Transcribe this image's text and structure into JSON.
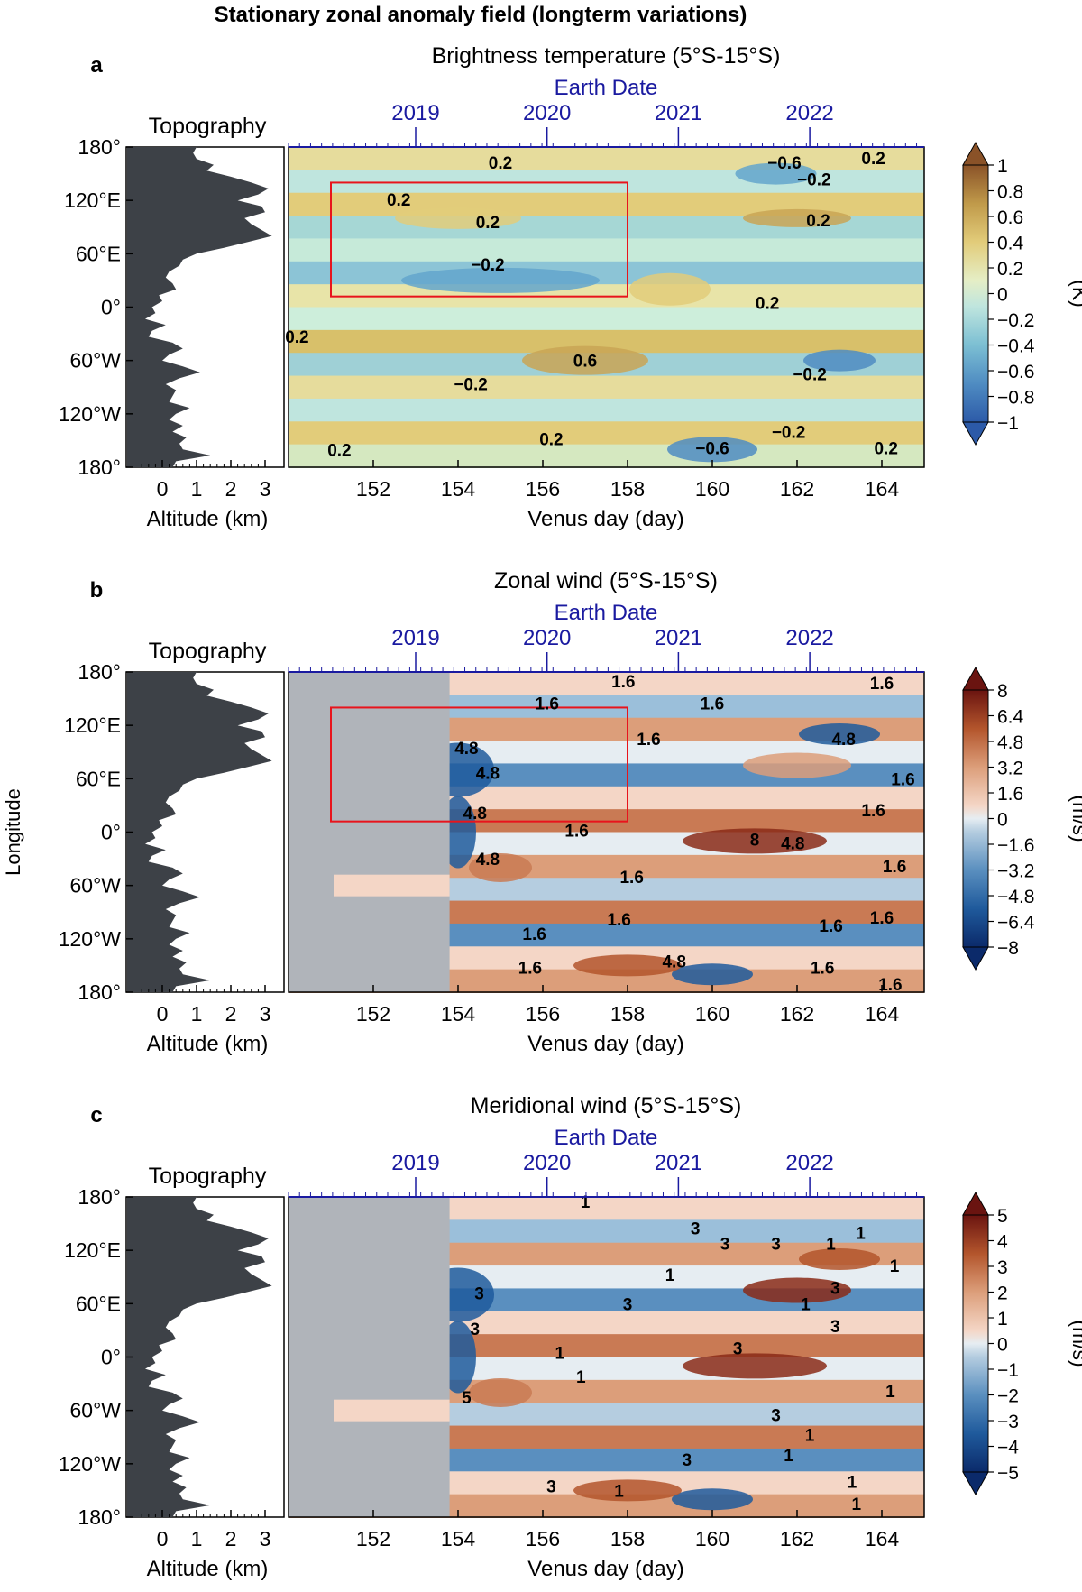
{
  "figure_title": "Stationary zonal anomaly field (longterm variations)",
  "shared": {
    "topography_label": "Topography",
    "altitude_label": "Altitude (km)",
    "altitude_ticks": [
      "0",
      "1",
      "2",
      "3"
    ],
    "earth_date_label": "Earth Date",
    "earth_years": [
      {
        "label": "2019",
        "day": 153.0
      },
      {
        "label": "2020",
        "day": 156.1
      },
      {
        "label": "2021",
        "day": 159.2
      },
      {
        "label": "2022",
        "day": 162.3
      }
    ],
    "venus_day_label": "Venus day (day)",
    "venus_days": [
      152,
      154,
      156,
      158,
      160,
      162,
      164
    ],
    "xlim": [
      150.0,
      165.0
    ],
    "longitude_label": "Longitude",
    "lon_ticks": [
      {
        "label": "180°",
        "lon": 180
      },
      {
        "label": "120°E",
        "lon": 120
      },
      {
        "label": "60°E",
        "lon": 60
      },
      {
        "label": "0°",
        "lon": 0
      },
      {
        "label": "60°W",
        "lon": -60
      },
      {
        "label": "120°W",
        "lon": -120
      },
      {
        "label": "180°",
        "lon": -180
      }
    ],
    "colors": {
      "earth_date": "#1a1aa0",
      "highlight_box": "#e8141c",
      "no_data": "#b0b4ba",
      "topography_fill": "#3d4147"
    },
    "topography_km": [
      1.0,
      0.9,
      1.0,
      1.5,
      1.3,
      2.0,
      2.6,
      3.1,
      2.8,
      2.2,
      2.9,
      3.0,
      2.4,
      2.6,
      2.9,
      3.2,
      2.5,
      1.8,
      1.0,
      0.6,
      0.5,
      0.2,
      0.1,
      0.3,
      0.4,
      -0.1,
      0.0,
      -0.3,
      -0.2,
      -0.5,
      0.1,
      -0.3,
      -0.4,
      0.3,
      0.6,
      0.2,
      0.0,
      0.6,
      1.1,
      0.5,
      0.1,
      0.4,
      0.3,
      0.2,
      0.8,
      0.4,
      0.2,
      0.6,
      0.3,
      0.7,
      0.5,
      0.6,
      1.4,
      0.4,
      0.3
    ]
  },
  "panels": [
    {
      "letter": "a",
      "title": "Brightness temperature (5°S-15°S)",
      "unit": "(K)",
      "colorbar_ticks": [
        "1",
        "0.8",
        "0.6",
        "0.4",
        "0.2",
        "0",
        "−0.2",
        "−0.4",
        "−0.6",
        "−0.8",
        "−1"
      ],
      "highlight_box": {
        "day": [
          151.0,
          158.0
        ],
        "lon": [
          12,
          140
        ]
      },
      "missing_before_day": null,
      "contour_labels": [
        {
          "text": "0.2",
          "day": 155.0,
          "lon": 163
        },
        {
          "text": "−0.6",
          "day": 161.7,
          "lon": 163
        },
        {
          "text": "−0.2",
          "day": 162.4,
          "lon": 144
        },
        {
          "text": "0.2",
          "day": 163.8,
          "lon": 168
        },
        {
          "text": "0.2",
          "day": 152.6,
          "lon": 121
        },
        {
          "text": "0.2",
          "day": 154.7,
          "lon": 96
        },
        {
          "text": "−0.2",
          "day": 154.7,
          "lon": 48
        },
        {
          "text": "0.2",
          "day": 162.5,
          "lon": 98
        },
        {
          "text": "0.2",
          "day": 161.3,
          "lon": 5
        },
        {
          "text": "0.2",
          "day": 150.2,
          "lon": -33
        },
        {
          "text": "0.6",
          "day": 157.0,
          "lon": -60
        },
        {
          "text": "−0.2",
          "day": 162.3,
          "lon": -75
        },
        {
          "text": "−0.2",
          "day": 154.3,
          "lon": -86
        },
        {
          "text": "0.2",
          "day": 156.2,
          "lon": -148
        },
        {
          "text": "−0.6",
          "day": 160.0,
          "lon": -158
        },
        {
          "text": "−0.2",
          "day": 161.8,
          "lon": -140
        },
        {
          "text": "0.2",
          "day": 151.2,
          "lon": -160
        },
        {
          "text": "0.2",
          "day": 164.1,
          "lon": -158
        }
      ]
    },
    {
      "letter": "b",
      "title": "Zonal wind (5°S-15°S)",
      "unit": "(m/s)",
      "colorbar_ticks": [
        "8",
        "6.4",
        "4.8",
        "3.2",
        "1.6",
        "0",
        "−1.6",
        "−3.2",
        "−4.8",
        "−6.4",
        "−8"
      ],
      "highlight_box": {
        "day": [
          151.0,
          158.0
        ],
        "lon": [
          12,
          140
        ]
      },
      "missing_before_day": 153.8,
      "contour_labels": [
        {
          "text": "1.6",
          "day": 157.9,
          "lon": 170
        },
        {
          "text": "1.6",
          "day": 164.0,
          "lon": 168
        },
        {
          "text": "1.6",
          "day": 156.1,
          "lon": 145
        },
        {
          "text": "1.6",
          "day": 160.0,
          "lon": 145
        },
        {
          "text": "1.6",
          "day": 158.5,
          "lon": 105
        },
        {
          "text": "4.8",
          "day": 163.1,
          "lon": 105
        },
        {
          "text": "4.8",
          "day": 154.2,
          "lon": 95
        },
        {
          "text": "4.8",
          "day": 154.7,
          "lon": 67
        },
        {
          "text": "1.6",
          "day": 164.5,
          "lon": 60
        },
        {
          "text": "4.8",
          "day": 154.4,
          "lon": 22
        },
        {
          "text": "1.6",
          "day": 163.8,
          "lon": 25
        },
        {
          "text": "1.6",
          "day": 156.8,
          "lon": 2
        },
        {
          "text": "8",
          "day": 161.0,
          "lon": -8
        },
        {
          "text": "4.8",
          "day": 161.9,
          "lon": -12
        },
        {
          "text": "4.8",
          "day": 154.7,
          "lon": -30
        },
        {
          "text": "1.6",
          "day": 164.3,
          "lon": -38
        },
        {
          "text": "1.6",
          "day": 158.1,
          "lon": -50
        },
        {
          "text": "1.6",
          "day": 157.8,
          "lon": -98
        },
        {
          "text": "1.6",
          "day": 162.8,
          "lon": -105
        },
        {
          "text": "1.6",
          "day": 164.0,
          "lon": -96
        },
        {
          "text": "1.6",
          "day": 155.8,
          "lon": -114
        },
        {
          "text": "4.8",
          "day": 159.1,
          "lon": -145
        },
        {
          "text": "1.6",
          "day": 155.7,
          "lon": -152
        },
        {
          "text": "1.6",
          "day": 162.6,
          "lon": -152
        },
        {
          "text": "1.6",
          "day": 164.2,
          "lon": -171
        }
      ]
    },
    {
      "letter": "c",
      "title": "Meridional wind (5°S-15°S)",
      "unit": "(m/s)",
      "colorbar_ticks": [
        "5",
        "4",
        "3",
        "2",
        "1",
        "0",
        "−1",
        "−2",
        "−3",
        "−4",
        "−5"
      ],
      "highlight_box": null,
      "missing_before_day": 153.8,
      "contour_labels": [
        {
          "text": "1",
          "day": 157.0,
          "lon": 175
        },
        {
          "text": "3",
          "day": 159.6,
          "lon": 145
        },
        {
          "text": "3",
          "day": 160.3,
          "lon": 128
        },
        {
          "text": "1",
          "day": 163.5,
          "lon": 140
        },
        {
          "text": "3",
          "day": 161.5,
          "lon": 128
        },
        {
          "text": "1",
          "day": 162.8,
          "lon": 128
        },
        {
          "text": "1",
          "day": 164.3,
          "lon": 103
        },
        {
          "text": "3",
          "day": 154.5,
          "lon": 72
        },
        {
          "text": "1",
          "day": 159.0,
          "lon": 93
        },
        {
          "text": "3",
          "day": 158.0,
          "lon": 60
        },
        {
          "text": "3",
          "day": 162.9,
          "lon": 78
        },
        {
          "text": "1",
          "day": 162.2,
          "lon": 60
        },
        {
          "text": "3",
          "day": 162.9,
          "lon": 35
        },
        {
          "text": "3",
          "day": 154.4,
          "lon": 32
        },
        {
          "text": "1",
          "day": 156.4,
          "lon": 5
        },
        {
          "text": "3",
          "day": 160.6,
          "lon": 10
        },
        {
          "text": "1",
          "day": 156.9,
          "lon": -22
        },
        {
          "text": "1",
          "day": 164.2,
          "lon": -38
        },
        {
          "text": "5",
          "day": 154.2,
          "lon": -45
        },
        {
          "text": "3",
          "day": 161.5,
          "lon": -65
        },
        {
          "text": "1",
          "day": 162.3,
          "lon": -87
        },
        {
          "text": "1",
          "day": 161.8,
          "lon": -110
        },
        {
          "text": "3",
          "day": 159.4,
          "lon": -115
        },
        {
          "text": "3",
          "day": 156.2,
          "lon": -145
        },
        {
          "text": "1",
          "day": 157.8,
          "lon": -150
        },
        {
          "text": "1",
          "day": 163.3,
          "lon": -140
        },
        {
          "text": "1",
          "day": 163.4,
          "lon": -165
        }
      ]
    }
  ]
}
